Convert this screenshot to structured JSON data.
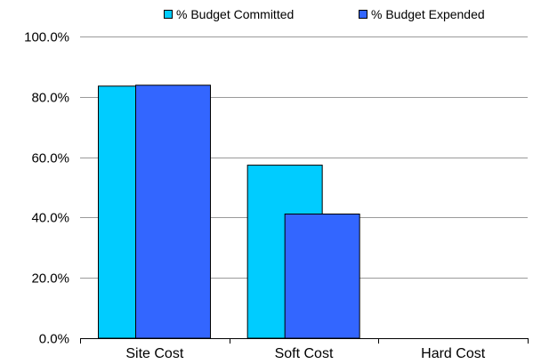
{
  "chart_data": {
    "type": "bar",
    "categories": [
      "Site Cost",
      "Soft Cost",
      "Hard Cost"
    ],
    "series": [
      {
        "name": "% Budget Committed",
        "values": [
          83.7,
          57.5,
          0
        ],
        "color": "#00CCFF"
      },
      {
        "name": "% Budget Expended",
        "values": [
          84.0,
          41.3,
          0
        ],
        "color": "#3366FF"
      }
    ],
    "ylim": [
      0,
      100
    ],
    "yticks": [
      0,
      20,
      40,
      60,
      80,
      100
    ],
    "ytick_labels": [
      "0.0%",
      "20.0%",
      "40.0%",
      "60.0%",
      "80.0%",
      "100.0%"
    ],
    "grid": true,
    "legend_position": "top-right",
    "title": "",
    "xlabel": "",
    "ylabel": ""
  }
}
